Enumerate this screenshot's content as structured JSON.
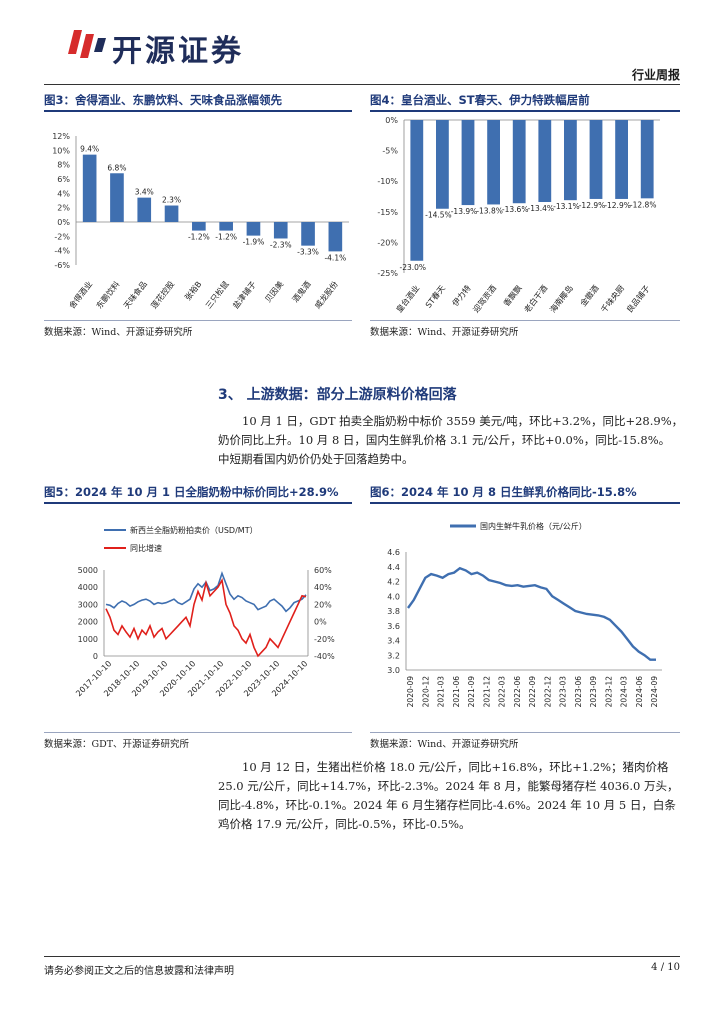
{
  "header": {
    "company": "开源证券",
    "report_type": "行业周报"
  },
  "fig3": {
    "title": "图3：舍得酒业、东鹏饮料、天味食品涨幅领先",
    "source": "数据来源：Wind、开源证券研究所",
    "chart_data": {
      "type": "bar",
      "categories": [
        "舍得酒业",
        "东鹏饮料",
        "天味食品",
        "莲花控股",
        "张裕B",
        "三只松鼠",
        "盐津铺子",
        "贝因美",
        "酒鬼酒",
        "威龙股份"
      ],
      "values": [
        9.4,
        6.8,
        3.4,
        2.3,
        -1.2,
        -1.2,
        -1.9,
        -2.3,
        -3.3,
        -4.1
      ],
      "data_labels": [
        "9.4%",
        "6.8%",
        "3.4%",
        "2.3%",
        "-1.2%",
        "-1.2%",
        "-1.9%",
        "-2.3%",
        "-3.3%",
        "-4.1%"
      ],
      "ylim": [
        -6,
        12
      ],
      "yticks": [
        "12%",
        "10%",
        "8%",
        "6%",
        "4%",
        "2%",
        "0%",
        "-2%",
        "-4%",
        "-6%"
      ],
      "color": "#3f6fb0"
    }
  },
  "fig4": {
    "title": "图4：皇台酒业、ST春天、伊力特跌幅居前",
    "source": "数据来源：Wind、开源证券研究所",
    "chart_data": {
      "type": "bar",
      "categories": [
        "皇台酒业",
        "ST春天",
        "伊力特",
        "迎驾贡酒",
        "香飘飘",
        "老白干酒",
        "海南椰岛",
        "金徽酒",
        "千味央厨",
        "良品铺子"
      ],
      "values": [
        -23.0,
        -14.5,
        -13.9,
        -13.8,
        -13.6,
        -13.4,
        -13.1,
        -12.9,
        -12.9,
        -12.8
      ],
      "data_labels": [
        "-23.0%",
        "-14.5%",
        "-13.9%",
        "-13.8%",
        "-13.6%",
        "-13.4%",
        "-13.1%",
        "-12.9%",
        "-12.9%",
        "-12.8%"
      ],
      "ylim": [
        -25,
        0
      ],
      "yticks": [
        "0%",
        "-5%",
        "-10%",
        "-15%",
        "-20%",
        "-25%"
      ],
      "color": "#3f6fb0"
    }
  },
  "section3": {
    "heading": "3、 上游数据：部分上游原料价格回落",
    "para1": [
      "10 月 1 日，GDT 拍卖全脂奶粉中标价 3559 美元/吨，环比+3.2%，同比+28.9%，",
      "奶价同比上升。10 月 8 日，国内生鲜乳价格 3.1 元/公斤，环比+0.0%，同比-15.8%。",
      "中短期看国内奶价仍处于回落趋势中。"
    ]
  },
  "fig5": {
    "title": "图5：2024 年 10 月 1 日全脂奶粉中标价同比+28.9%",
    "source": "数据来源：GDT、开源证券研究所",
    "chart_data": {
      "type": "line",
      "series": [
        {
          "name": "新西兰全脂奶粉拍卖价（USD/MT）",
          "axis": "left",
          "color": "#3f6fb0",
          "values": [
            3000,
            2950,
            2800,
            3050,
            3200,
            3100,
            2900,
            3000,
            3150,
            3250,
            3300,
            3200,
            3000,
            3100,
            3050,
            3100,
            3200,
            3300,
            3100,
            3000,
            3150,
            3300,
            3900,
            4200,
            4000,
            4300,
            3800,
            3900,
            4100,
            4800,
            4200,
            3600,
            3300,
            3500,
            3400,
            3200,
            3100,
            3000,
            2700,
            2800,
            2900,
            3200,
            3300,
            3100,
            2900,
            2600,
            2800,
            3100,
            3200,
            3300,
            3559
          ]
        },
        {
          "name": "同比增速",
          "axis": "right",
          "color": "#e0201b",
          "values": [
            15,
            5,
            -10,
            -15,
            -5,
            -12,
            -18,
            -8,
            -20,
            -10,
            -15,
            -5,
            -18,
            -12,
            -8,
            -20,
            -15,
            -10,
            -5,
            0,
            5,
            -5,
            20,
            35,
            25,
            45,
            30,
            35,
            40,
            48,
            20,
            10,
            -5,
            -10,
            -20,
            -25,
            -15,
            -30,
            -40,
            -35,
            -30,
            -20,
            -25,
            -30,
            -20,
            -10,
            0,
            10,
            20,
            30,
            28.9
          ]
        }
      ],
      "x_ticks": [
        "2017-10-10",
        "2018-10-10",
        "2019-10-10",
        "2020-10-10",
        "2021-10-10",
        "2022-10-10",
        "2023-10-10",
        "2024-10-10"
      ],
      "y_left_ticks": [
        "5000",
        "4000",
        "3000",
        "2000",
        "1000",
        "0"
      ],
      "y_right_ticks": [
        "60%",
        "40%",
        "20%",
        "0%",
        "-20%",
        "-40%"
      ],
      "ylim_left": [
        0,
        5000
      ],
      "ylim_right": [
        -40,
        60
      ],
      "legend": "top-left"
    }
  },
  "fig6": {
    "title": "图6：2024 年 10 月 8 日生鲜乳价格同比-15.8%",
    "source": "数据来源：Wind、开源证券研究所",
    "chart_data": {
      "type": "line",
      "series": [
        {
          "name": "国内生鲜牛乳价格（元/公斤）",
          "color": "#3f6fb0",
          "values": [
            3.84,
            3.95,
            4.1,
            4.25,
            4.3,
            4.28,
            4.25,
            4.3,
            4.32,
            4.38,
            4.35,
            4.3,
            4.32,
            4.28,
            4.22,
            4.2,
            4.18,
            4.15,
            4.14,
            4.15,
            4.13,
            4.14,
            4.15,
            4.12,
            4.1,
            4.0,
            3.95,
            3.9,
            3.85,
            3.8,
            3.78,
            3.76,
            3.75,
            3.74,
            3.72,
            3.68,
            3.6,
            3.52,
            3.42,
            3.32,
            3.25,
            3.2,
            3.14,
            3.14
          ]
        }
      ],
      "x_ticks": [
        "2020-09",
        "2020-12",
        "2021-03",
        "2021-06",
        "2021-09",
        "2021-12",
        "2022-03",
        "2022-06",
        "2022-09",
        "2022-12",
        "2023-03",
        "2023-06",
        "2023-09",
        "2023-12",
        "2024-03",
        "2024-06",
        "2024-09"
      ],
      "y_ticks": [
        "4.6",
        "4.4",
        "4.2",
        "4.0",
        "3.8",
        "3.6",
        "3.4",
        "3.2",
        "3.0"
      ],
      "ylim": [
        3.0,
        4.6
      ],
      "legend": "top"
    }
  },
  "para2": [
    "10 月 12 日，生猪出栏价格 18.0 元/公斤，同比+16.8%，环比+1.2%；猪肉价格",
    "25.0 元/公斤，同比+14.7%，环比-2.3%。2024 年 8 月，能繁母猪存栏 4036.0 万头，",
    "同比-4.8%，环比-0.1%。2024 年 6 月生猪存栏同比-4.6%。2024 年 10 月 5 日，白条",
    "鸡价格 17.9 元/公斤，同比-0.5%，环比-0.5%。"
  ],
  "footer": {
    "disclaimer": "请务必参阅正文之后的信息披露和法律声明",
    "page": "4 / 10"
  }
}
